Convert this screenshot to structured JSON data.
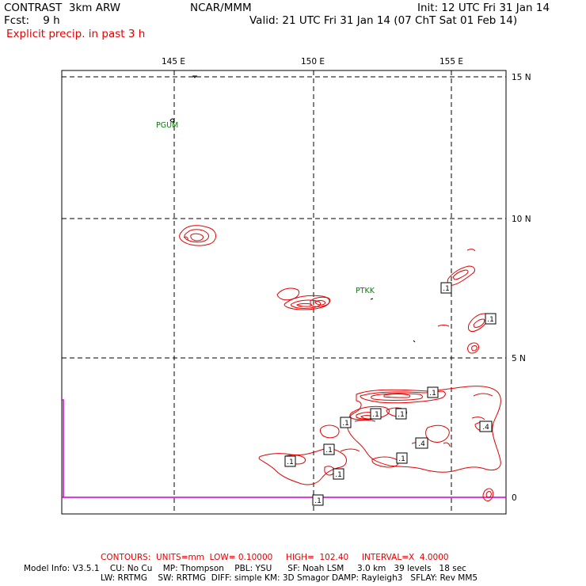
{
  "header": {
    "left_line1": "CONTRAST  3km ARW",
    "center_line1": "NCAR/MMM",
    "right_line1": "Init: 12 UTC Fri 31 Jan 14",
    "left_line2": "Fcst:    9 h",
    "right_line2": "Valid: 21 UTC Fri 31 Jan 14 (07 ChT Sat 01 Feb 14)",
    "field_title": "Explicit precip. in past 3 h"
  },
  "axes": {
    "lon_labels": [
      "145 E",
      "150 E",
      "155 E"
    ],
    "lat_labels": [
      "15 N",
      "10 N",
      "5 N",
      "0"
    ]
  },
  "stations": [
    {
      "id": "PGUM"
    },
    {
      "id": "PTKK"
    }
  ],
  "contour_labels": [
    ".1",
    ".1",
    ".1",
    ".1",
    ".1",
    ".1",
    ".1",
    ".4",
    ".1",
    ".1",
    ".1",
    ".1",
    ".4",
    ".1",
    ".1"
  ],
  "footer": {
    "contours_line": "CONTOURS:  UNITS=mm  LOW= 0.10000     HIGH=  102.40     INTERVAL=X  4.0000",
    "model_line1": "Model Info: V3.5.1    CU: No Cu    MP: Thompson    PBL: YSU      SF: Noah LSM     3.0 km   39 levels   18 sec",
    "model_line2": "LW: RRTMG    SW: RRTMG  DIFF: simple KM: 3D Smagor DAMP: Rayleigh3   SFLAY: Rev MM5"
  },
  "colors": {
    "contour": "#e60000",
    "station": "#0a7a0a",
    "frame": "#000000",
    "equator_line": "#cc00cc"
  }
}
